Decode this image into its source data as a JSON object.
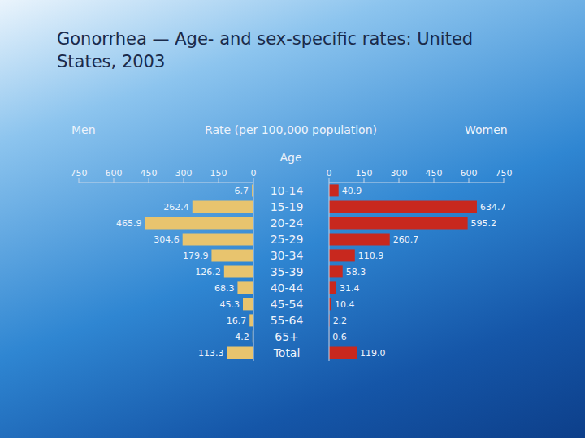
{
  "chart_data": {
    "type": "bar",
    "orientation": "horizontal",
    "title": "Gonorrhea — Age- and sex-specific rates: United States, 2003",
    "x_label": "Rate (per 100,000 population)",
    "y_label": "Age",
    "categories": [
      "10-14",
      "15-19",
      "20-24",
      "25-29",
      "30-34",
      "35-39",
      "40-44",
      "45-54",
      "55-64",
      "65+",
      "Total"
    ],
    "series": [
      {
        "name": "Men",
        "color": "#e8c46e",
        "values": [
          6.7,
          262.4,
          465.9,
          304.6,
          179.9,
          126.2,
          68.3,
          45.3,
          16.7,
          4.2,
          113.3
        ]
      },
      {
        "name": "Women",
        "color": "#c8281e",
        "values": [
          40.9,
          634.7,
          595.2,
          260.7,
          110.9,
          58.3,
          31.4,
          10.4,
          2.2,
          0.6,
          119.0
        ],
        "value_labels": [
          "40.9",
          "634.7",
          "595.2",
          "260.7",
          "110.9",
          "58.3",
          "31.4",
          "10.4",
          "2.2",
          "0.6",
          "119.0"
        ]
      }
    ],
    "xlim": [
      0,
      750
    ],
    "xticks": [
      0,
      150,
      300,
      450,
      600,
      750
    ],
    "data_labels": true,
    "grid": false
  }
}
